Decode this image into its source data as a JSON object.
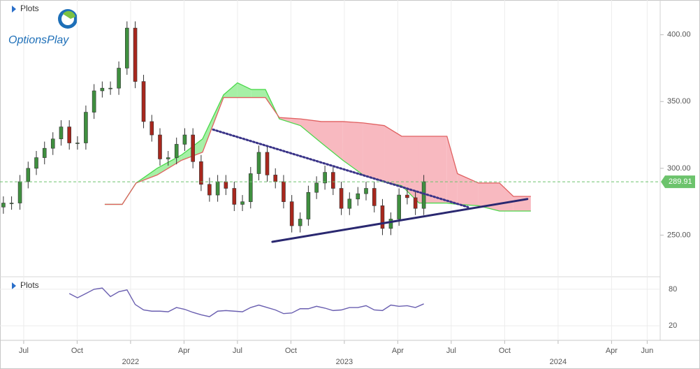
{
  "logo": "OptionsPlay",
  "chart_data": [
    {
      "type": "candlestick",
      "title": "Plots",
      "x": [
        -7.14,
        -6.68,
        -6.21,
        -5.75,
        -5.29,
        -4.83,
        -4.36,
        -3.9,
        -3.44,
        -2.98,
        -2.51,
        -2.05,
        -1.59,
        -1.13,
        -0.66,
        -0.2,
        0.26,
        0.73,
        1.19,
        1.65,
        2.11,
        2.58,
        3.04,
        3.5,
        3.96,
        4.43,
        4.89,
        5.35,
        5.82,
        6.28,
        6.74,
        7.2,
        7.67,
        8.13,
        8.59,
        9.05,
        9.52,
        9.98,
        10.44,
        10.91,
        11.37,
        11.83,
        12.29,
        12.76,
        13.22,
        13.68,
        14.14,
        14.61,
        15.07,
        15.53,
        15.99,
        16.46
      ],
      "open": [
        271,
        274,
        274,
        290,
        300,
        308,
        315,
        322,
        331,
        319,
        319,
        342,
        358,
        360,
        360,
        375,
        405,
        365,
        335,
        325,
        307,
        308,
        318,
        325,
        305,
        288,
        280,
        290,
        285,
        273,
        275,
        296,
        312,
        295,
        290,
        275,
        257,
        262,
        282,
        289,
        297,
        285,
        270,
        277,
        281,
        285,
        272,
        255,
        262,
        280,
        278,
        270
      ],
      "high": [
        279,
        279,
        295,
        305,
        313,
        320,
        327,
        336,
        336,
        324,
        347,
        363,
        365,
        365,
        380,
        410,
        410,
        370,
        340,
        330,
        313,
        323,
        330,
        330,
        310,
        293,
        295,
        295,
        290,
        280,
        301,
        317,
        317,
        300,
        295,
        280,
        267,
        287,
        294,
        302,
        302,
        290,
        282,
        286,
        290,
        290,
        277,
        267,
        285,
        285,
        283,
        295
      ],
      "low": [
        266,
        269,
        269,
        285,
        295,
        303,
        310,
        317,
        314,
        314,
        314,
        337,
        353,
        355,
        355,
        370,
        360,
        330,
        320,
        302,
        302,
        303,
        313,
        300,
        283,
        275,
        275,
        280,
        268,
        268,
        270,
        291,
        290,
        285,
        270,
        252,
        252,
        257,
        277,
        284,
        280,
        265,
        265,
        272,
        276,
        267,
        250,
        250,
        257,
        273,
        265,
        265
      ],
      "close": [
        274,
        274,
        290,
        300,
        308,
        315,
        322,
        331,
        319,
        319,
        342,
        358,
        360,
        360,
        375,
        405,
        365,
        335,
        325,
        307,
        308,
        318,
        325,
        305,
        288,
        280,
        290,
        285,
        273,
        275,
        296,
        312,
        295,
        290,
        275,
        257,
        262,
        282,
        289,
        297,
        285,
        270,
        277,
        281,
        285,
        272,
        255,
        262,
        280,
        278,
        270,
        290
      ],
      "up_color": "#3f8f3f",
      "down_color": "#a8271d",
      "cloud": {
        "x": [
          -1.45,
          -0.47,
          0.31,
          1.49,
          2.86,
          4.04,
          5.22,
          6.0,
          6.78,
          7.57,
          8.35,
          9.53,
          10.71,
          11.92,
          13.06,
          14.24,
          15.22,
          16.2,
          17.76,
          18.35,
          19.53,
          20.71,
          21.49,
          22.47
        ],
        "span_a": [
          273,
          273,
          289,
          300,
          310,
          322,
          355,
          364,
          359,
          359,
          337,
          332,
          319,
          306,
          295,
          290,
          287,
          274,
          274,
          273,
          272,
          268,
          268,
          268
        ],
        "span_b": [
          273,
          273,
          289,
          295,
          306,
          312,
          353,
          353,
          353,
          353,
          338,
          337,
          335,
          335,
          334,
          332,
          324,
          324,
          324,
          296,
          289,
          289,
          279,
          279
        ],
        "color_a": "#4cd94c",
        "color_b": "#e06060",
        "fill_a": "#a6f0a6",
        "fill_b": "#f8b9c0"
      },
      "trendlines": [
        {
          "x": [
            4.63,
            18.94
          ],
          "y": [
            329,
            271
          ],
          "color": "#3a3488",
          "style": "dotted"
        },
        {
          "x": [
            7.96,
            22.27
          ],
          "y": [
            245,
            277
          ],
          "color": "#2a2870",
          "style": "solid"
        }
      ],
      "last_price": 289.91,
      "last_price_color": "#6cc36c",
      "xlim": [
        -7.33,
        29.73
      ],
      "xticks": [
        {
          "value": -6,
          "label": "Jul"
        },
        {
          "value": -3,
          "label": "Oct"
        },
        {
          "value": 3,
          "label": "Apr"
        },
        {
          "value": 6,
          "label": "Jul"
        },
        {
          "value": 9,
          "label": "Oct"
        },
        {
          "value": 15,
          "label": "Apr"
        },
        {
          "value": 18,
          "label": "Jul"
        },
        {
          "value": 21,
          "label": "Oct"
        },
        {
          "value": 27,
          "label": "Apr"
        },
        {
          "value": 29,
          "label": "Jun"
        }
      ],
      "year_ticks": [
        {
          "value": 0,
          "label": "2022"
        },
        {
          "value": 12,
          "label": "2023"
        },
        {
          "value": 24,
          "label": "2024"
        }
      ],
      "ylim": [
        220.4,
        426
      ],
      "yticks": [
        {
          "value": 250,
          "label": "250.00"
        },
        {
          "value": 300,
          "label": "300.00"
        },
        {
          "value": 350,
          "label": "350.00"
        },
        {
          "value": 400,
          "label": "400.00"
        }
      ],
      "grid": true
    },
    {
      "type": "line",
      "title": "Plots",
      "x": [
        -3.44,
        -2.98,
        -2.51,
        -2.05,
        -1.59,
        -1.13,
        -0.66,
        -0.2,
        0.26,
        0.73,
        1.19,
        1.65,
        2.11,
        2.58,
        3.04,
        3.5,
        3.96,
        4.43,
        4.89,
        5.35,
        5.82,
        6.28,
        6.74,
        7.2,
        7.67,
        8.13,
        8.59,
        9.05,
        9.52,
        9.98,
        10.44,
        10.91,
        11.37,
        11.83,
        12.29,
        12.76,
        13.22,
        13.68,
        14.14,
        14.61,
        15.07,
        15.53,
        15.99,
        16.46
      ],
      "values": [
        73,
        66,
        73,
        80,
        82,
        68,
        76,
        79,
        55,
        46,
        44,
        44,
        43,
        50,
        47,
        42,
        38,
        35,
        44,
        45,
        44,
        43,
        50,
        54,
        50,
        46,
        40,
        41,
        48,
        48,
        52,
        49,
        45,
        46,
        50,
        50,
        53,
        46,
        45,
        54,
        52,
        53,
        50,
        56
      ],
      "color": "#6a5fb0",
      "xlim": [
        -7.33,
        29.73
      ],
      "ylim": [
        -4,
        96
      ],
      "yticks": [
        20,
        80
      ]
    }
  ]
}
